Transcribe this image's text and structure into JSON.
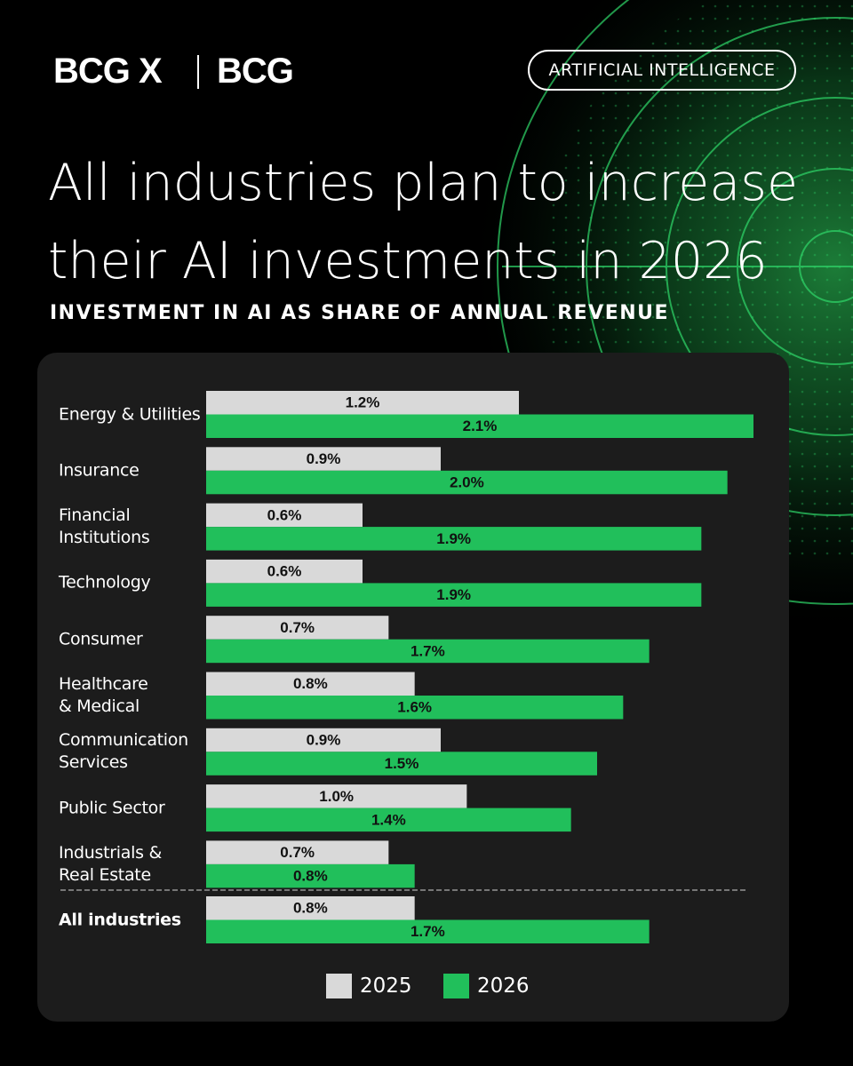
{
  "brand": {
    "logo_left": "BCG X",
    "logo_right": "BCG"
  },
  "tag": "ARTIFICIAL INTELLIGENCE",
  "chart_data": {
    "type": "hbar",
    "title": "All industries plan to increase\ntheir AI investments in 2026",
    "subtitle": "INVESTMENT IN AI AS SHARE OF ANNUAL REVENUE",
    "categories": [
      "Energy & Utilities",
      "Insurance",
      "Financial\nInstitutions",
      "Technology",
      "Consumer",
      "Healthcare\n& Medical",
      "Communication\nServices",
      "Public Sector",
      "Industrials &\nReal Estate",
      "All industries"
    ],
    "series": [
      {
        "name": "2025",
        "color": "#d9d9d9",
        "values": [
          1.2,
          0.9,
          0.6,
          0.6,
          0.7,
          0.8,
          0.9,
          1.0,
          0.7,
          0.8
        ],
        "value_labels": [
          "1.2%",
          "0.9%",
          "0.6%",
          "0.6%",
          "0.7%",
          "0.8%",
          "0.9%",
          "1.0%",
          "0.7%",
          "0.8%"
        ]
      },
      {
        "name": "2026",
        "color": "#21bf5b",
        "values": [
          2.1,
          2.0,
          1.9,
          1.9,
          1.7,
          1.6,
          1.5,
          1.4,
          0.8,
          1.7
        ],
        "value_labels": [
          "2.1%",
          "2.0%",
          "1.9%",
          "1.9%",
          "1.7%",
          "1.6%",
          "1.5%",
          "1.4%",
          "0.8%",
          "1.7%"
        ]
      }
    ]
  }
}
